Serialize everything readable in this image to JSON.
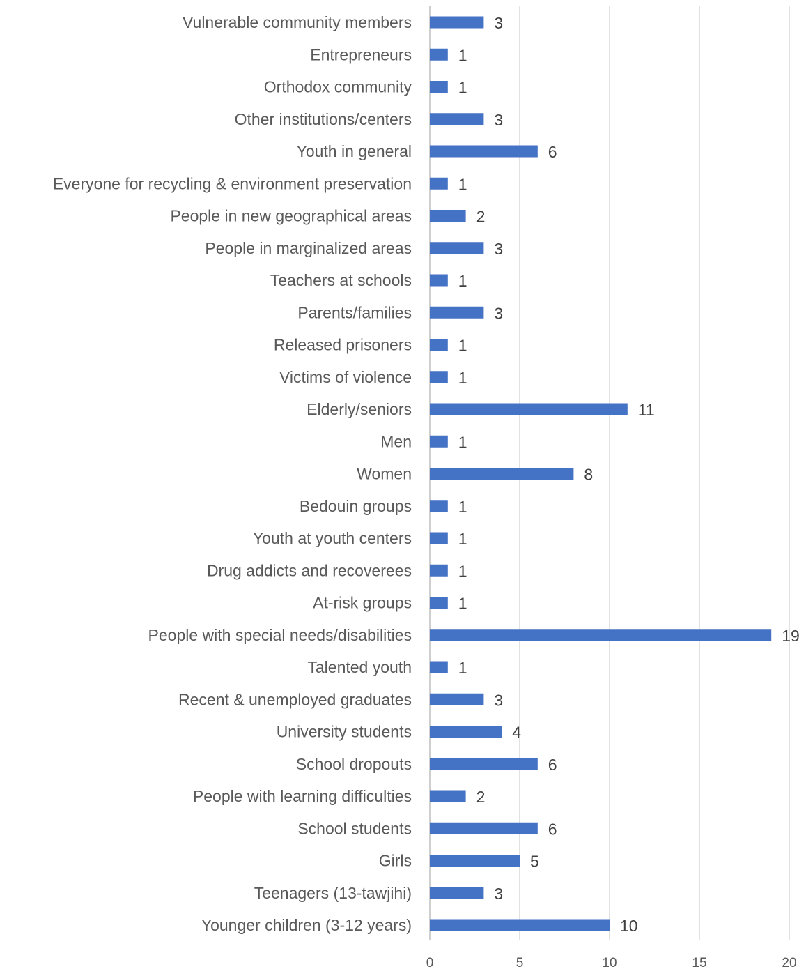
{
  "chart_data": {
    "type": "bar",
    "orientation": "horizontal",
    "categories": [
      "Vulnerable community members",
      "Entrepreneurs",
      "Orthodox community",
      "Other institutions/centers",
      "Youth in general",
      "Everyone for recycling & environment preservation",
      "People in new geographical areas",
      "People in marginalized areas",
      "Teachers at schools",
      "Parents/families",
      "Released prisoners",
      "Victims of violence",
      "Elderly/seniors",
      "Men",
      "Women",
      "Bedouin groups",
      "Youth at youth centers",
      "Drug addicts and recoverees",
      "At-risk groups",
      "People with special needs/disabilities",
      "Talented youth",
      "Recent & unemployed graduates",
      "University students",
      "School dropouts",
      "People with learning difficulties",
      "School students",
      "Girls",
      "Teenagers (13-tawjihi)",
      "Younger children (3-12 years)"
    ],
    "values": [
      3,
      1,
      1,
      3,
      6,
      1,
      2,
      3,
      1,
      3,
      1,
      1,
      11,
      1,
      8,
      1,
      1,
      1,
      1,
      19,
      1,
      3,
      4,
      6,
      2,
      6,
      5,
      3,
      10
    ],
    "xlim": [
      0,
      20
    ],
    "xticks": [
      0,
      5,
      10,
      15,
      20
    ],
    "grid": true,
    "data_labels": true,
    "bar_color": "#4472C4",
    "title": "",
    "xlabel": "",
    "ylabel": ""
  }
}
